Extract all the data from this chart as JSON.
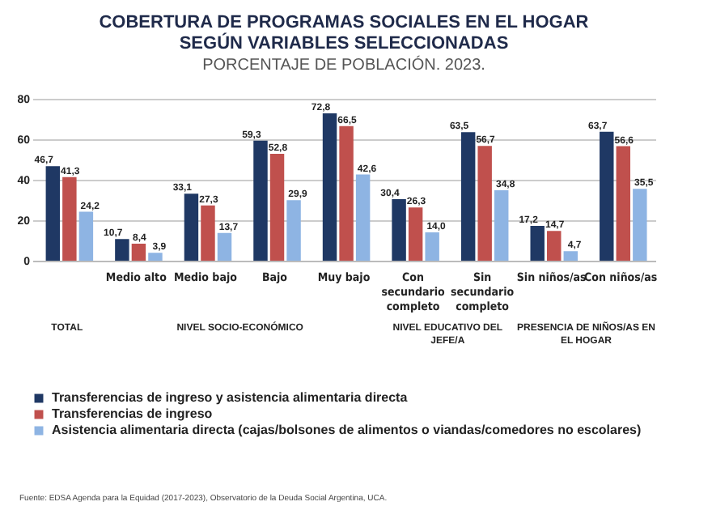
{
  "chart_data": {
    "type": "bar",
    "title": [
      "COBERTURA DE PROGRAMAS SOCIALES EN EL HOGAR",
      "SEGÚN VARIABLES SELECCIONADAS"
    ],
    "subtitle": "PORCENTAJE DE POBLACIÓN. 2023.",
    "categories": [
      null,
      "Medio alto",
      "Medio bajo",
      "Bajo",
      "Muy bajo",
      "Con secundario completo",
      "Sin secundario completo",
      "Sin niños/as",
      "Con niños/as"
    ],
    "series": [
      {
        "name": "Transferencias de ingreso y asistencia alimentaria directa",
        "color": "#1f3864",
        "values": [
          46.7,
          10.7,
          33.1,
          59.3,
          72.8,
          30.4,
          63.5,
          17.2,
          63.7
        ]
      },
      {
        "name": "Transferencias de ingreso",
        "color": "#c0504d",
        "values": [
          41.3,
          8.4,
          27.3,
          52.8,
          66.5,
          26.3,
          56.7,
          14.7,
          56.6
        ]
      },
      {
        "name": "Asistencia alimentaria directa (cajas/bolsones de alimentos o viandas/comedores no escolares)",
        "color": "#8eb4e3",
        "values": [
          24.2,
          3.9,
          13.7,
          29.9,
          42.6,
          14.0,
          34.8,
          4.7,
          35.5
        ]
      }
    ],
    "value_labels": [
      [
        "46,7",
        "10,7",
        "33,1",
        "59,3",
        "72,8",
        "30,4",
        "63,5",
        "17,2",
        "63,7"
      ],
      [
        "41,3",
        "8,4",
        "27,3",
        "52,8",
        "66,5",
        "26,3",
        "56,7",
        "14,7",
        "56,6"
      ],
      [
        "24,2",
        "3,9",
        "13,7",
        "29,9",
        "42,6",
        "14,0",
        "34,8",
        "4,7",
        "35,5"
      ]
    ],
    "ylim": [
      0,
      80
    ],
    "yticks": [
      0,
      20,
      40,
      60,
      80
    ],
    "grid": "y",
    "legend": "bottom",
    "annotations": [
      "TOTAL",
      "NIVEL SOCIO-ECONÓMICO",
      "NIVEL EDUCATIVO DEL JEFE/A",
      "PRESENCIA DE NIÑOS/AS EN EL HOGAR",
      "Fuente: EDSA Agenda para la Equidad (2017-2023), Observatorio de la Deuda Social Argentina, UCA."
    ]
  }
}
